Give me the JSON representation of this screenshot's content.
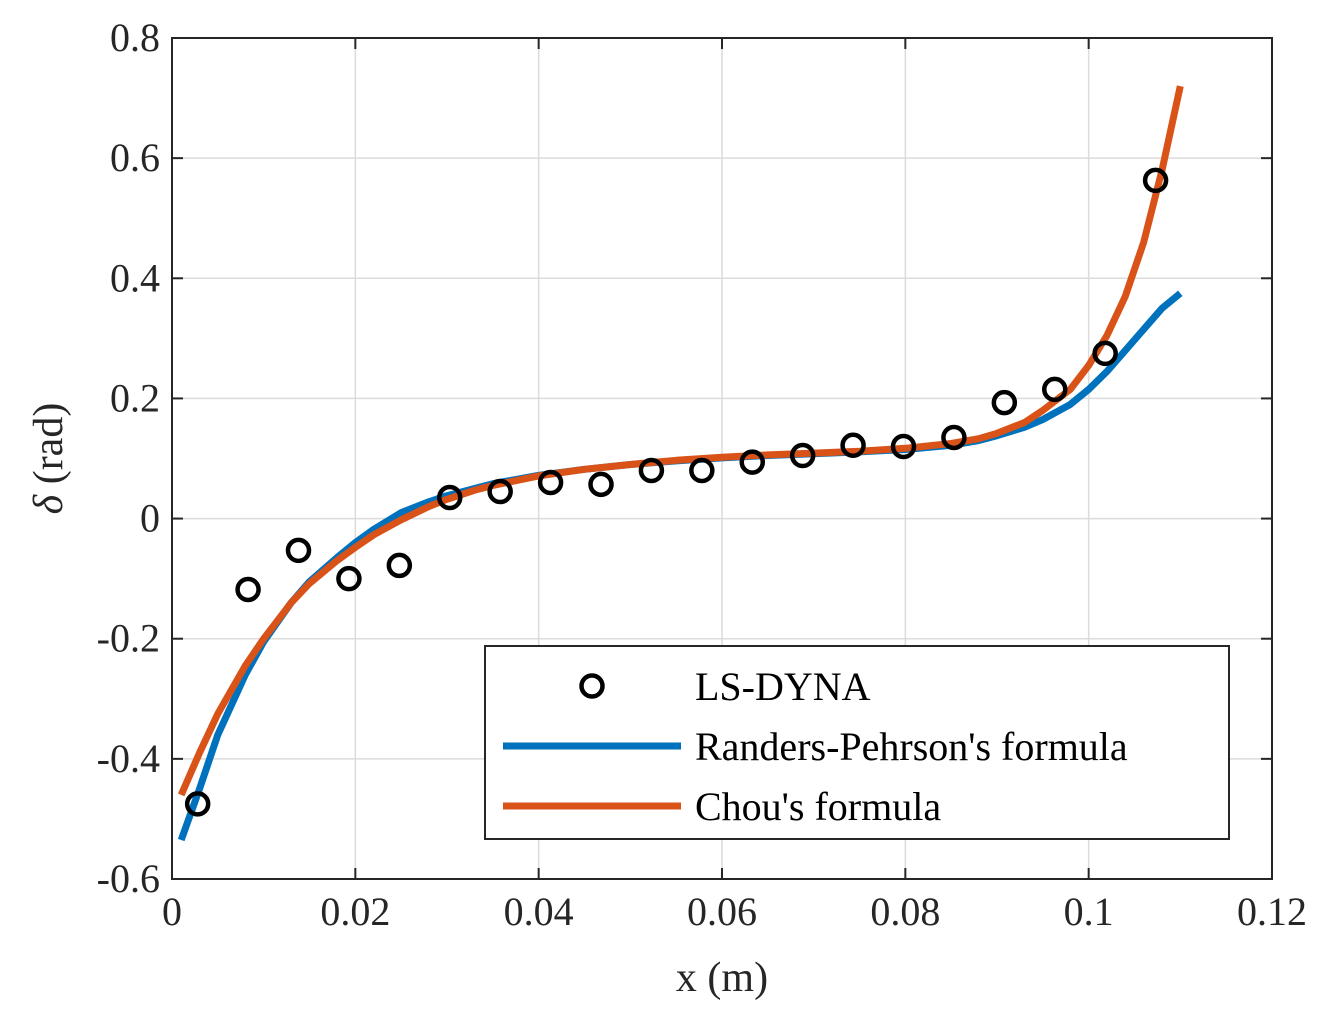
{
  "chart_data": {
    "type": "line",
    "title": "",
    "xlabel": "x (m)",
    "ylabel_symbol": "δ",
    "ylabel_unit": " (rad)",
    "xlim": [
      0,
      0.12
    ],
    "ylim": [
      -0.6,
      0.8
    ],
    "x_ticks": [
      0,
      0.02,
      0.04,
      0.06,
      0.08,
      0.1,
      0.12
    ],
    "x_tick_labels": [
      "0",
      "0.02",
      "0.04",
      "0.06",
      "0.08",
      "0.1",
      "0.12"
    ],
    "y_ticks": [
      -0.6,
      -0.4,
      -0.2,
      0,
      0.2,
      0.4,
      0.6,
      0.8
    ],
    "y_tick_labels": [
      "-0.6",
      "-0.4",
      "-0.2",
      "0",
      "0.2",
      "0.4",
      "0.6",
      "0.8"
    ],
    "grid": true,
    "legend_position": "bottom-right",
    "series": [
      {
        "name": "LS-DYNA",
        "kind": "scatter",
        "marker": "circle",
        "color": "#000000",
        "x": [
          0.0028,
          0.0083,
          0.0138,
          0.0193,
          0.0248,
          0.0303,
          0.0358,
          0.0413,
          0.0468,
          0.0523,
          0.0578,
          0.0633,
          0.0688,
          0.0743,
          0.0798,
          0.0853,
          0.0908,
          0.0963,
          0.1018,
          0.1073
        ],
        "y": [
          -0.475,
          -0.118,
          -0.053,
          -0.1,
          -0.078,
          0.035,
          0.045,
          0.06,
          0.057,
          0.08,
          0.08,
          0.094,
          0.105,
          0.122,
          0.12,
          0.135,
          0.193,
          0.215,
          0.275,
          0.563
        ]
      },
      {
        "name": "Randers-Pehrson's formula",
        "kind": "line",
        "color": "#0072BD",
        "x": [
          0.001,
          0.003,
          0.005,
          0.008,
          0.01,
          0.013,
          0.015,
          0.018,
          0.02,
          0.022,
          0.025,
          0.028,
          0.03,
          0.033,
          0.035,
          0.04,
          0.045,
          0.05,
          0.055,
          0.06,
          0.065,
          0.07,
          0.075,
          0.08,
          0.085,
          0.088,
          0.09,
          0.093,
          0.095,
          0.098,
          0.1,
          0.102,
          0.104,
          0.106,
          0.108,
          0.11
        ],
        "y": [
          -0.535,
          -0.45,
          -0.36,
          -0.26,
          -0.205,
          -0.14,
          -0.105,
          -0.065,
          -0.04,
          -0.018,
          0.01,
          0.028,
          0.038,
          0.05,
          0.058,
          0.072,
          0.082,
          0.09,
          0.096,
          0.101,
          0.105,
          0.108,
          0.111,
          0.115,
          0.122,
          0.13,
          0.138,
          0.152,
          0.165,
          0.19,
          0.215,
          0.245,
          0.28,
          0.315,
          0.35,
          0.375
        ]
      },
      {
        "name": "Chou's formula",
        "kind": "line",
        "color": "#D95319",
        "x": [
          0.001,
          0.003,
          0.005,
          0.008,
          0.01,
          0.013,
          0.015,
          0.018,
          0.02,
          0.022,
          0.025,
          0.028,
          0.03,
          0.033,
          0.035,
          0.04,
          0.045,
          0.05,
          0.055,
          0.06,
          0.065,
          0.07,
          0.075,
          0.08,
          0.085,
          0.088,
          0.09,
          0.093,
          0.095,
          0.098,
          0.1,
          0.102,
          0.104,
          0.106,
          0.108,
          0.11
        ],
        "y": [
          -0.46,
          -0.39,
          -0.325,
          -0.245,
          -0.2,
          -0.14,
          -0.108,
          -0.07,
          -0.048,
          -0.027,
          -0.002,
          0.02,
          0.032,
          0.047,
          0.055,
          0.071,
          0.082,
          0.09,
          0.097,
          0.102,
          0.106,
          0.109,
          0.112,
          0.117,
          0.125,
          0.133,
          0.142,
          0.16,
          0.18,
          0.215,
          0.255,
          0.305,
          0.37,
          0.46,
          0.58,
          0.72
        ]
      }
    ]
  }
}
